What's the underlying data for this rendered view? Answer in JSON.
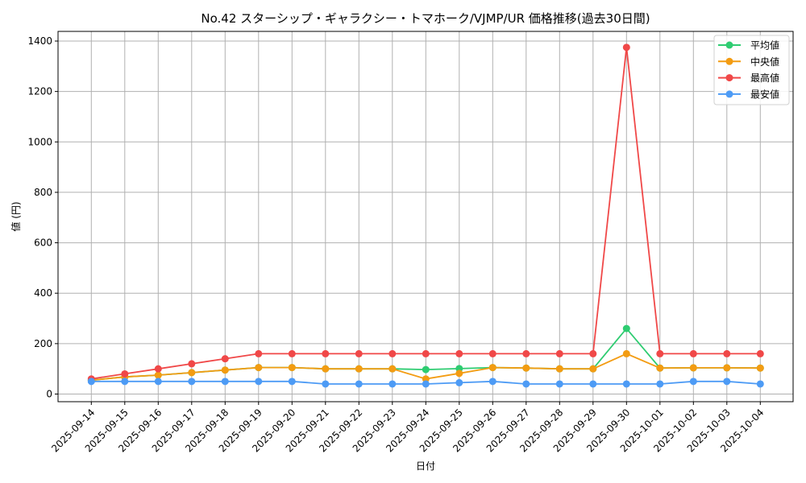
{
  "chart_data": {
    "type": "line",
    "title": "No.42 スターシップ・ギャラクシー・トマホーク/VJMP/UR 価格推移(過去30日間)",
    "xlabel": "日付",
    "ylabel": "値 (円)",
    "ylim": [
      -40,
      1440
    ],
    "yticks": [
      0,
      200,
      400,
      600,
      800,
      1000,
      1200,
      1400
    ],
    "grid": true,
    "legend_position": "upper right",
    "categories": [
      "2025-09-14",
      "2025-09-15",
      "2025-09-16",
      "2025-09-17",
      "2025-09-18",
      "2025-09-19",
      "2025-09-20",
      "2025-09-21",
      "2025-09-22",
      "2025-09-23",
      "2025-09-24",
      "2025-09-25",
      "2025-09-26",
      "2025-09-27",
      "2025-09-28",
      "2025-09-29",
      "2025-09-30",
      "2025-10-01",
      "2025-10-02",
      "2025-10-03",
      "2025-10-04"
    ],
    "series": [
      {
        "name": "平均値",
        "color": "#2ecc71",
        "values": [
          55,
          68,
          75,
          85,
          95,
          105,
          105,
          100,
          100,
          100,
          97,
          101,
          105,
          103,
          100,
          100,
          260,
          103,
          104,
          104,
          103
        ]
      },
      {
        "name": "中央値",
        "color": "#f39c12",
        "values": [
          55,
          68,
          75,
          85,
          95,
          105,
          105,
          100,
          100,
          100,
          60,
          82,
          105,
          103,
          100,
          100,
          160,
          103,
          104,
          104,
          103
        ]
      },
      {
        "name": "最高値",
        "color": "#f04848",
        "values": [
          60,
          80,
          100,
          120,
          140,
          160,
          160,
          160,
          160,
          160,
          160,
          160,
          160,
          160,
          160,
          160,
          1375,
          160,
          160,
          160,
          160
        ]
      },
      {
        "name": "最安値",
        "color": "#4d9bf5",
        "values": [
          50,
          50,
          50,
          50,
          50,
          50,
          50,
          40,
          40,
          40,
          40,
          45,
          50,
          40,
          40,
          40,
          40,
          40,
          50,
          50,
          40
        ]
      }
    ]
  }
}
